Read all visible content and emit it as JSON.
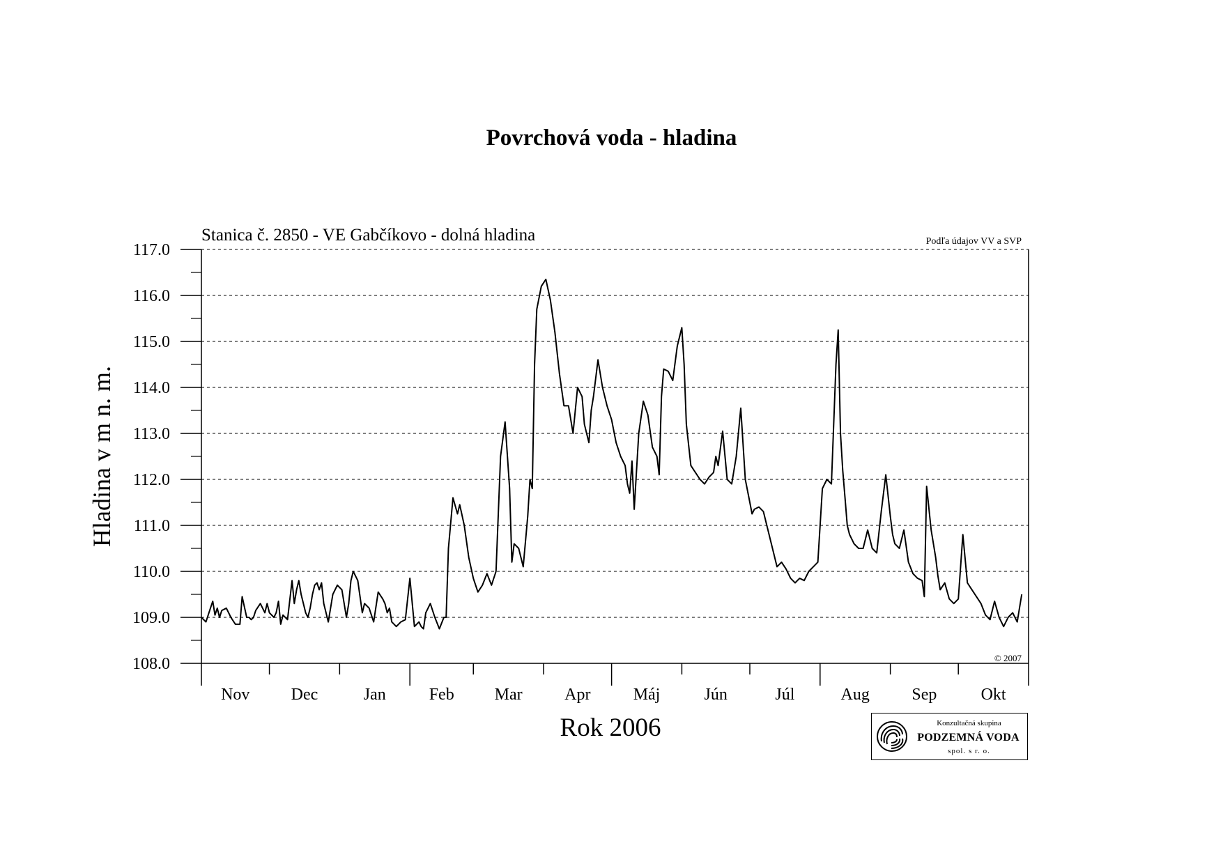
{
  "title": "Povrchová voda - hladina",
  "chart_data": {
    "type": "line",
    "subtitle": "Stanica č. 2850 - VE Gabčíkovo - dolná hladina",
    "source_note": "Podľa údajov VV a SVP",
    "copyright": "© 2007",
    "ylabel": "Hladina v m n. m.",
    "xlabel": "Rok 2006",
    "ylim": [
      108.0,
      117.0
    ],
    "yticks": [
      "108.0",
      "109.0",
      "110.0",
      "111.0",
      "112.0",
      "113.0",
      "114.0",
      "115.0",
      "116.0",
      "117.0"
    ],
    "grid": "horizontal dashed",
    "months": [
      "Nov",
      "Dec",
      "Jan",
      "Feb",
      "Mar",
      "Apr",
      "Máj",
      "Jún",
      "Júl",
      "Aug",
      "Sep",
      "Okt"
    ],
    "month_lengths": [
      30,
      31,
      31,
      28,
      31,
      30,
      31,
      30,
      31,
      31,
      30,
      31
    ],
    "series": [
      {
        "day_of_period": [
          0,
          2,
          4,
          5,
          6,
          7,
          8,
          9,
          11,
          13,
          15,
          17,
          18,
          20,
          21,
          22,
          23,
          24,
          26,
          28,
          29,
          30,
          32,
          33,
          34,
          35,
          36,
          38,
          40,
          41,
          42,
          43,
          44,
          46,
          47,
          48,
          49,
          50,
          51,
          52,
          53,
          54,
          56,
          58,
          60,
          62,
          64,
          65,
          66,
          67,
          69,
          71,
          72,
          74,
          76,
          78,
          80,
          81,
          82,
          83,
          84,
          86,
          88,
          90,
          92,
          94,
          96,
          97,
          98,
          99,
          101,
          103,
          105,
          107,
          108,
          109,
          111,
          113,
          114,
          116,
          118,
          120,
          122,
          124,
          126,
          128,
          130,
          132,
          134,
          136,
          137,
          138,
          140,
          142,
          144,
          145,
          146,
          147,
          148,
          150,
          152,
          154,
          156,
          158,
          160,
          162,
          164,
          166,
          168,
          169,
          170,
          171,
          172,
          173,
          175,
          177,
          179,
          181,
          183,
          185,
          187,
          188,
          189,
          190,
          191,
          193,
          195,
          197,
          199,
          201,
          202,
          203,
          204,
          206,
          208,
          210,
          212,
          213,
          214,
          216,
          218,
          220,
          222,
          224,
          226,
          227,
          228,
          230,
          232,
          234,
          236,
          238,
          240,
          242,
          243,
          244,
          246,
          248,
          250,
          252,
          254,
          256,
          258,
          260,
          262,
          264,
          266,
          268,
          270,
          272,
          274,
          276,
          278,
          280,
          281,
          282,
          283,
          284,
          285,
          286,
          288,
          290,
          292,
          294,
          296,
          298,
          300,
          302,
          304,
          305,
          306,
          308,
          310,
          312,
          314,
          316,
          318,
          319,
          320,
          322,
          324,
          325,
          326,
          328,
          330,
          332,
          334,
          336,
          338,
          340,
          342,
          344,
          346,
          348,
          350,
          352,
          354,
          356,
          358,
          360,
          362,
          364
        ],
        "values": [
          109.0,
          108.9,
          109.2,
          109.35,
          109.05,
          109.2,
          109.0,
          109.15,
          109.2,
          109.0,
          108.85,
          108.85,
          109.45,
          109.0,
          109.0,
          108.95,
          109.0,
          109.15,
          109.3,
          109.1,
          109.3,
          109.1,
          109.0,
          109.1,
          109.35,
          108.85,
          109.05,
          108.95,
          109.8,
          109.3,
          109.6,
          109.8,
          109.5,
          109.1,
          109.0,
          109.2,
          109.5,
          109.7,
          109.75,
          109.6,
          109.75,
          109.3,
          108.9,
          109.5,
          109.7,
          109.6,
          109.0,
          109.3,
          109.8,
          110.0,
          109.8,
          109.1,
          109.3,
          109.2,
          108.9,
          109.55,
          109.4,
          109.3,
          109.1,
          109.2,
          108.9,
          108.8,
          108.9,
          108.95,
          109.85,
          108.8,
          108.9,
          108.8,
          108.75,
          109.1,
          109.3,
          109.0,
          108.75,
          109.0,
          109.0,
          110.5,
          111.6,
          111.25,
          111.45,
          111.0,
          110.3,
          109.85,
          109.55,
          109.7,
          109.95,
          109.7,
          110.0,
          112.5,
          113.25,
          111.8,
          110.2,
          110.6,
          110.5,
          110.1,
          111.2,
          112.0,
          111.8,
          114.5,
          115.7,
          116.2,
          116.35,
          115.9,
          115.2,
          114.3,
          113.6,
          113.6,
          113.0,
          114.0,
          113.8,
          113.2,
          113.0,
          112.8,
          113.5,
          113.8,
          114.6,
          114.0,
          113.6,
          113.3,
          112.8,
          112.5,
          112.3,
          111.9,
          111.7,
          112.4,
          111.35,
          113.0,
          113.7,
          113.4,
          112.7,
          112.5,
          112.1,
          113.8,
          114.4,
          114.35,
          114.15,
          114.9,
          115.3,
          114.5,
          113.2,
          112.3,
          112.15,
          112.0,
          111.9,
          112.05,
          112.15,
          112.5,
          112.3,
          113.05,
          112.0,
          111.9,
          112.5,
          113.55,
          112.0,
          111.5,
          111.25,
          111.35,
          111.4,
          111.3,
          110.9,
          110.5,
          110.1,
          110.2,
          110.05,
          109.85,
          109.75,
          109.85,
          109.8,
          110.0,
          110.1,
          110.2,
          111.8,
          112.0,
          111.9,
          114.5,
          115.25,
          113.0,
          112.2,
          111.6,
          111.0,
          110.8,
          110.6,
          110.5,
          110.5,
          110.9,
          110.5,
          110.4,
          111.3,
          112.1,
          111.2,
          110.8,
          110.6,
          110.5,
          110.9,
          110.2,
          109.95,
          109.85,
          109.8,
          109.45,
          111.85,
          110.9,
          110.3,
          109.9,
          109.6,
          109.75,
          109.4,
          109.3,
          109.4,
          110.8,
          109.75,
          109.6,
          109.45,
          109.3,
          109.05,
          108.95,
          109.35,
          109.0,
          108.8,
          109.0,
          109.1,
          108.9,
          109.5
        ]
      }
    ]
  },
  "logo": {
    "top_text": "Konzultačná skupina",
    "name": "PODZEMNÁ VODA",
    "bottom_text": "spol. s r. o."
  }
}
